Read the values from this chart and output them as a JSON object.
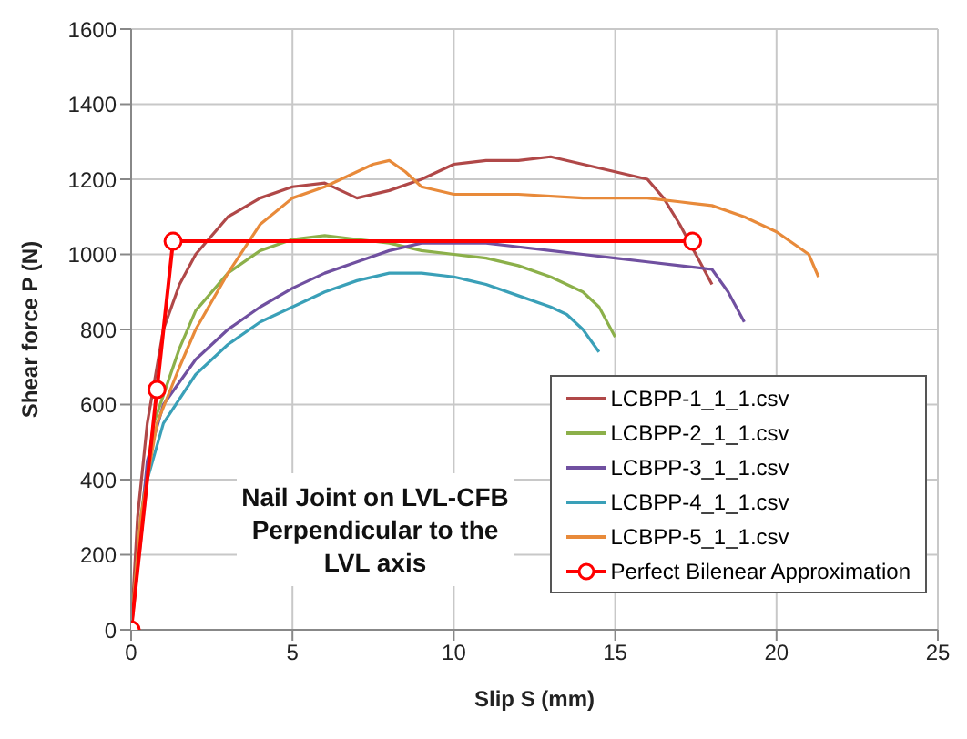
{
  "chart_data": {
    "type": "line",
    "xlabel": "Slip  S  (mm)",
    "ylabel": "Shear force  P  (N)",
    "xlim": [
      0,
      25
    ],
    "xticks": [
      0,
      5,
      10,
      15,
      20,
      25
    ],
    "ylim": [
      0,
      1600
    ],
    "yticks": [
      0,
      200,
      400,
      600,
      800,
      1000,
      1200,
      1400,
      1600
    ],
    "grid": true,
    "legend": "bottom right",
    "annotations": [
      "Nail Joint on LVL-CFB Perpendicular to the LVL axis"
    ],
    "series": [
      {
        "name": "LCBPP-1_1_1.csv",
        "color": "#b04848",
        "x": [
          0,
          0.2,
          0.5,
          1,
          1.5,
          2,
          3,
          4,
          5,
          6,
          7,
          8,
          9,
          10,
          11,
          12,
          13,
          14,
          15,
          16,
          16.5,
          17,
          17.5,
          18
        ],
        "values": [
          0,
          300,
          550,
          800,
          920,
          1000,
          1100,
          1150,
          1180,
          1190,
          1150,
          1170,
          1200,
          1240,
          1250,
          1250,
          1260,
          1240,
          1220,
          1200,
          1150,
          1080,
          1000,
          920
        ]
      },
      {
        "name": "LCBPP-2_1_1.csv",
        "color": "#8cb04a",
        "x": [
          0,
          0.3,
          0.7,
          1.5,
          2,
          3,
          4,
          5,
          6,
          7,
          8,
          9,
          10,
          11,
          12,
          13,
          14,
          14.5,
          15
        ],
        "values": [
          0,
          300,
          550,
          750,
          850,
          950,
          1010,
          1040,
          1050,
          1040,
          1030,
          1010,
          1000,
          990,
          970,
          940,
          900,
          860,
          780
        ]
      },
      {
        "name": "LCBPP-3_1_1.csv",
        "color": "#7050a0",
        "x": [
          0,
          0.5,
          1,
          2,
          3,
          4,
          5,
          6,
          7,
          8,
          9,
          10,
          11,
          12,
          13,
          14,
          15,
          16,
          17,
          18,
          18.5,
          19
        ],
        "values": [
          0,
          450,
          600,
          720,
          800,
          860,
          910,
          950,
          980,
          1010,
          1030,
          1030,
          1030,
          1020,
          1010,
          1000,
          990,
          980,
          970,
          960,
          900,
          820
        ]
      },
      {
        "name": "LCBPP-4_1_1.csv",
        "color": "#3aa0b8",
        "x": [
          0,
          0.5,
          1,
          2,
          3,
          4,
          5,
          6,
          7,
          8,
          9,
          10,
          11,
          12,
          13,
          13.5,
          14,
          14.5
        ],
        "values": [
          0,
          400,
          550,
          680,
          760,
          820,
          860,
          900,
          930,
          950,
          950,
          940,
          920,
          890,
          860,
          840,
          800,
          740
        ]
      },
      {
        "name": "LCBPP-5_1_1.csv",
        "color": "#e88a3a",
        "x": [
          0,
          0.3,
          0.8,
          1.5,
          2,
          3,
          4,
          5,
          6,
          7,
          7.5,
          8,
          8.5,
          9,
          10,
          12,
          14,
          16,
          17,
          18,
          19,
          20,
          21,
          21.3
        ],
        "values": [
          0,
          300,
          550,
          700,
          800,
          950,
          1080,
          1150,
          1180,
          1220,
          1240,
          1250,
          1220,
          1180,
          1160,
          1160,
          1150,
          1150,
          1140,
          1130,
          1100,
          1060,
          1000,
          940
        ]
      },
      {
        "name": "Perfect Bilenear Approximation",
        "color": "#ff0000",
        "marker": "circle",
        "x": [
          0,
          0.8,
          1.3,
          17.4
        ],
        "values": [
          0,
          640,
          1035,
          1035
        ]
      }
    ]
  }
}
